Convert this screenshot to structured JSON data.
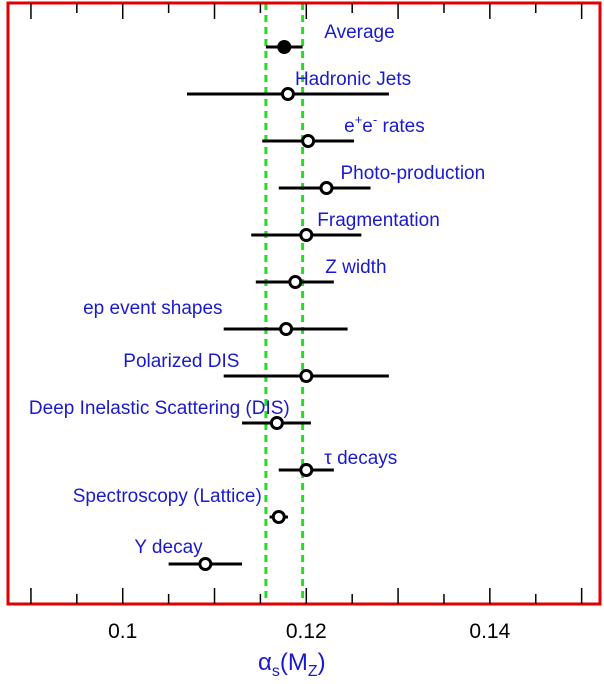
{
  "chart_data": {
    "type": "scatter",
    "xlabel": "αs(MZ)",
    "xlim": [
      0.0875,
      0.152
    ],
    "xticks": [
      {
        "value": 0.1,
        "label": "0.1"
      },
      {
        "value": 0.12,
        "label": "0.12"
      },
      {
        "value": 0.14,
        "label": "0.14"
      }
    ],
    "band": [
      0.1156,
      0.1196
    ],
    "points": [
      {
        "name": "Average",
        "value": 0.1176,
        "lo": 0.1156,
        "hi": 0.1196,
        "filled": true
      },
      {
        "name": "Hadronic Jets",
        "value": 0.118,
        "lo": 0.107,
        "hi": 0.129,
        "filled": false
      },
      {
        "name": "e+e- rates",
        "value": 0.1202,
        "lo": 0.1152,
        "hi": 0.1252,
        "filled": false
      },
      {
        "name": "Photo-production",
        "value": 0.1222,
        "lo": 0.117,
        "hi": 0.127,
        "filled": false
      },
      {
        "name": "Fragmentation",
        "value": 0.12,
        "lo": 0.114,
        "hi": 0.126,
        "filled": false
      },
      {
        "name": "Z width",
        "value": 0.1188,
        "lo": 0.1145,
        "hi": 0.123,
        "filled": false
      },
      {
        "name": "ep event shapes",
        "value": 0.1178,
        "lo": 0.111,
        "hi": 0.1245,
        "filled": false
      },
      {
        "name": "Polarized DIS",
        "value": 0.12,
        "lo": 0.111,
        "hi": 0.129,
        "filled": false
      },
      {
        "name": "Deep Inelastic Scattering (DIS)",
        "value": 0.1168,
        "lo": 0.113,
        "hi": 0.1205,
        "filled": false
      },
      {
        "name": "τ decays",
        "value": 0.12,
        "lo": 0.117,
        "hi": 0.123,
        "filled": false
      },
      {
        "name": "Spectroscopy (Lattice)",
        "value": 0.117,
        "lo": 0.116,
        "hi": 0.118,
        "filled": false
      },
      {
        "name": "Υ decay",
        "value": 0.109,
        "lo": 0.105,
        "hi": 0.113,
        "filled": false
      }
    ]
  }
}
